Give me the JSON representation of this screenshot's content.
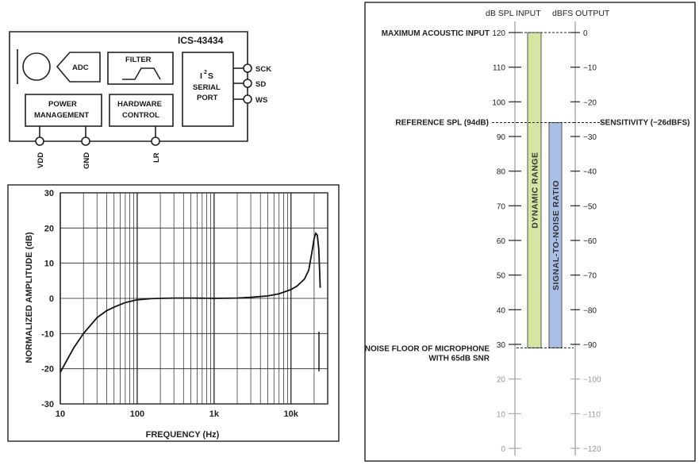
{
  "block_diagram": {
    "title": "ICS-43434",
    "adc": "ADC",
    "filter": "FILTER",
    "i2s_line1": "I",
    "i2s_sup": "2",
    "i2s_s": "S",
    "i2s_line2": "SERIAL",
    "i2s_line3": "PORT",
    "power_line1": "POWER",
    "power_line2": "MANAGEMENT",
    "hw_line1": "HARDWARE",
    "hw_line2": "CONTROL",
    "pins_right": [
      "SCK",
      "SD",
      "WS"
    ],
    "pins_bottom": [
      "VDD",
      "GND",
      "LR"
    ]
  },
  "chart_data": [
    {
      "type": "line",
      "xlabel": "FREQUENCY (Hz)",
      "ylabel": "NORMALIZED AMPLITUDE (dB)",
      "x_scale": "log",
      "xlim": [
        10,
        30000
      ],
      "ylim": [
        -30,
        30
      ],
      "x_ticks": [
        "10",
        "100",
        "1k",
        "10k"
      ],
      "y_ticks": [
        "30",
        "20",
        "10",
        "0",
        "-10",
        "-20",
        "-30"
      ],
      "grid": true,
      "series": [
        {
          "x": [
            10,
            15,
            20,
            30,
            40,
            50,
            70,
            100,
            150,
            200,
            300,
            500,
            1000,
            2000,
            3000,
            5000,
            7000,
            10000,
            12000,
            15000,
            17000,
            18000,
            19000,
            20000,
            21000,
            22000,
            23000,
            24000
          ],
          "y": [
            -21,
            -14,
            -10,
            -5.5,
            -3.5,
            -2.5,
            -1.2,
            -0.4,
            -0.1,
            0,
            0.1,
            0.1,
            0,
            0.1,
            0.3,
            0.7,
            1.3,
            2.5,
            3.5,
            5.5,
            8,
            11,
            14,
            17,
            18.5,
            18,
            14,
            3
          ]
        }
      ]
    },
    {
      "type": "bar",
      "title_left": "dB SPL INPUT",
      "title_right": "dBFS OUTPUT",
      "left_axis": {
        "ticks": [
          120,
          110,
          100,
          90,
          80,
          70,
          60,
          50,
          40,
          30,
          20,
          10,
          0
        ],
        "range": [
          0,
          120
        ]
      },
      "right_axis": {
        "ticks": [
          0,
          -10,
          -20,
          -30,
          -40,
          -50,
          -60,
          -70,
          -80,
          -90,
          -100,
          -110,
          -120
        ],
        "range": [
          -120,
          0
        ]
      },
      "reference_lines": [
        {
          "spl": 120,
          "label_left": "MAXIMUM ACOUSTIC INPUT",
          "label_right": ""
        },
        {
          "spl": 94,
          "label_left": "REFERENCE SPL (94dB)",
          "label_right": "SENSITIVITY (−26dBFS)"
        },
        {
          "spl": 29,
          "label_left": "NOISE FLOOR OF MICROPHONE",
          "label_left2": "WITH 65dB SNR",
          "label_right": ""
        }
      ],
      "bars": [
        {
          "name": "DYNAMIC RANGE",
          "from": 29,
          "to": 120,
          "color": "#d4e6a1"
        },
        {
          "name": "SIGNAL-TO-NOISE RATIO",
          "from": 29,
          "to": 94,
          "color": "#a9bfe6"
        }
      ]
    }
  ]
}
